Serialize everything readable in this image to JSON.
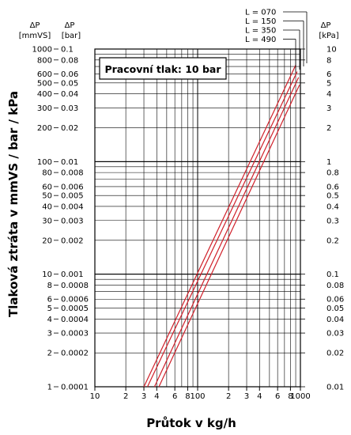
{
  "chart_data": {
    "type": "line",
    "x_label": "Průtok v kg/h",
    "y_label": "Tlaková ztráta v mmVS / bar / kPa",
    "annotation": "Pracovní tlak: 10 bar",
    "x_scale": "log",
    "y_scale": "log",
    "x_range": [
      10,
      1000
    ],
    "y_range_mmVS": [
      1,
      1000
    ],
    "x_tick_labels": [
      "10",
      "2",
      "3",
      "4",
      "6",
      "8",
      "100",
      "2",
      "3",
      "4",
      "6",
      "8",
      "1000"
    ],
    "left_axis_mmVS": {
      "unit_symbol": "ΔP",
      "unit": "[mmVS]",
      "ticks": [
        "1000",
        "800",
        "600",
        "500",
        "400",
        "300",
        "200",
        "100",
        "80",
        "60",
        "50",
        "40",
        "30",
        "20",
        "10",
        "8",
        "6",
        "5",
        "4",
        "3",
        "2",
        "1"
      ]
    },
    "left_axis_bar": {
      "unit_symbol": "ΔP",
      "unit": "[bar]",
      "ticks": [
        "0.1",
        "0.08",
        "0.06",
        "0.05",
        "0.04",
        "0.03",
        "0.02",
        "0.01",
        "0.008",
        "0.006",
        "0.005",
        "0.004",
        "0.003",
        "0.002",
        "0.001",
        "0.0008",
        "0.0006",
        "0.0005",
        "0.0004",
        "0.0003",
        "0.0002",
        "0.0001"
      ]
    },
    "right_axis_kPa": {
      "unit_symbol": "ΔP",
      "unit": "[kPa]",
      "ticks": [
        "10",
        "8",
        "6",
        "5",
        "4",
        "3",
        "2",
        "1",
        "0.8",
        "0.6",
        "0.5",
        "0.4",
        "0.3",
        "0.2",
        "0.1",
        "0.08",
        "0.06",
        "0.05",
        "0.04",
        "0.03",
        "0.02",
        "0.01"
      ]
    },
    "series_color": "#d0202a",
    "series": [
      {
        "name": "L = 070",
        "x": [
          30,
          900
        ],
        "y": [
          1,
          720
        ]
      },
      {
        "name": "L = 150",
        "x": [
          32.5,
          930
        ],
        "y": [
          1,
          630
        ]
      },
      {
        "name": "L = 350",
        "x": [
          38,
          960
        ],
        "y": [
          1,
          560
        ]
      },
      {
        "name": "L = 490",
        "x": [
          42,
          980
        ],
        "y": [
          1,
          480
        ]
      }
    ]
  }
}
